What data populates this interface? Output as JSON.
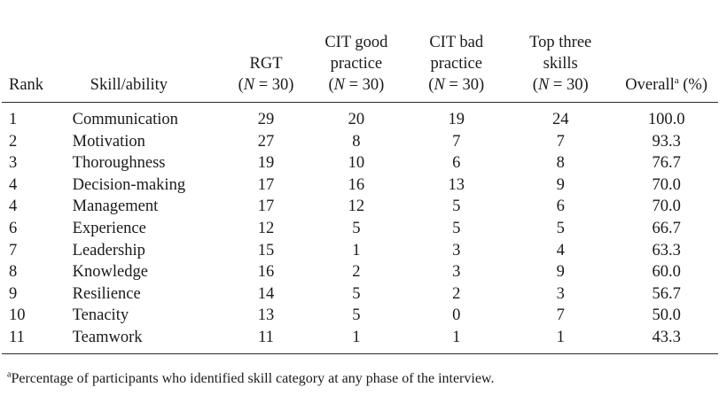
{
  "table": {
    "headers": {
      "rank": "Rank",
      "skill": "Skill/ability",
      "rgt": {
        "line1": "RGT",
        "n_label": "N",
        "n_value": "= 30"
      },
      "cit_good": {
        "line1": "CIT good",
        "line2": "practice",
        "n_label": "N",
        "n_value": "= 30"
      },
      "cit_bad": {
        "line1": "CIT bad",
        "line2": "practice",
        "n_label": "N",
        "n_value": "= 30"
      },
      "top_three": {
        "line1": "Top three",
        "line2": "skills",
        "n_label": "N",
        "n_value": "= 30"
      },
      "overall": {
        "label": "Overall",
        "marker": "a",
        "unit": "(%)"
      }
    },
    "rows": [
      {
        "rank": "1",
        "skill": "Communication",
        "rgt": "29",
        "cit_good": "20",
        "cit_bad": "19",
        "top_three": "24",
        "overall": "100.0"
      },
      {
        "rank": "2",
        "skill": "Motivation",
        "rgt": "27",
        "cit_good": "8",
        "cit_bad": "7",
        "top_three": "7",
        "overall": "93.3"
      },
      {
        "rank": "3",
        "skill": "Thoroughness",
        "rgt": "19",
        "cit_good": "10",
        "cit_bad": "6",
        "top_three": "8",
        "overall": "76.7"
      },
      {
        "rank": "4",
        "skill": "Decision-making",
        "rgt": "17",
        "cit_good": "16",
        "cit_bad": "13",
        "top_three": "9",
        "overall": "70.0"
      },
      {
        "rank": "4",
        "skill": "Management",
        "rgt": "17",
        "cit_good": "12",
        "cit_bad": "5",
        "top_three": "6",
        "overall": "70.0"
      },
      {
        "rank": "6",
        "skill": "Experience",
        "rgt": "12",
        "cit_good": "5",
        "cit_bad": "5",
        "top_three": "5",
        "overall": "66.7"
      },
      {
        "rank": "7",
        "skill": "Leadership",
        "rgt": "15",
        "cit_good": "1",
        "cit_bad": "3",
        "top_three": "4",
        "overall": "63.3"
      },
      {
        "rank": "8",
        "skill": "Knowledge",
        "rgt": "16",
        "cit_good": "2",
        "cit_bad": "3",
        "top_three": "9",
        "overall": "60.0"
      },
      {
        "rank": "9",
        "skill": "Resilience",
        "rgt": "14",
        "cit_good": "5",
        "cit_bad": "2",
        "top_three": "3",
        "overall": "56.7"
      },
      {
        "rank": "10",
        "skill": "Tenacity",
        "rgt": "13",
        "cit_good": "5",
        "cit_bad": "0",
        "top_three": "7",
        "overall": "50.0"
      },
      {
        "rank": "11",
        "skill": "Teamwork",
        "rgt": "11",
        "cit_good": "1",
        "cit_bad": "1",
        "top_three": "1",
        "overall": "43.3"
      }
    ]
  },
  "footnote": {
    "marker": "a",
    "text": "Percentage of participants who identified skill category at any phase of the interview."
  }
}
